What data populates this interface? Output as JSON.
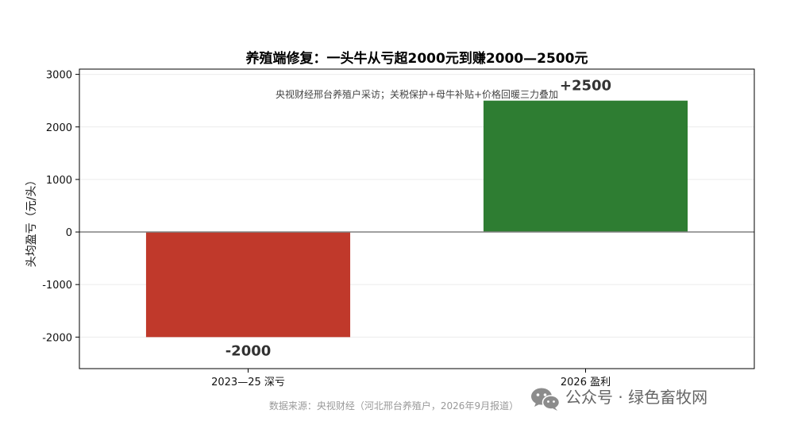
{
  "chart_data": {
    "type": "bar",
    "title": "养殖端修复：一头牛从亏超2000元到赚2000—2500元",
    "subtitle": "央视财经邢台养殖户采访；关税保护+母牛补贴+价格回暖三力叠加",
    "xlabel": "",
    "ylabel": "头均盈亏（元/头）",
    "categories": [
      "2023—25 深亏",
      "2026 盈利"
    ],
    "values": [
      -2000,
      2500
    ],
    "data_labels": [
      "-2000",
      "+2500"
    ],
    "colors": [
      "#c0392b",
      "#2e7d32"
    ],
    "ylim": [
      -2600,
      3100
    ],
    "yticks": [
      3000,
      2000,
      1000,
      0,
      -1000,
      -2000
    ],
    "grid": true
  },
  "source": "数据来源：央视财经（河北邢台养殖户，2026年9月报道）",
  "watermark": {
    "text": "公众号 · 绿色畜牧网",
    "icon": "wechat-icon"
  }
}
